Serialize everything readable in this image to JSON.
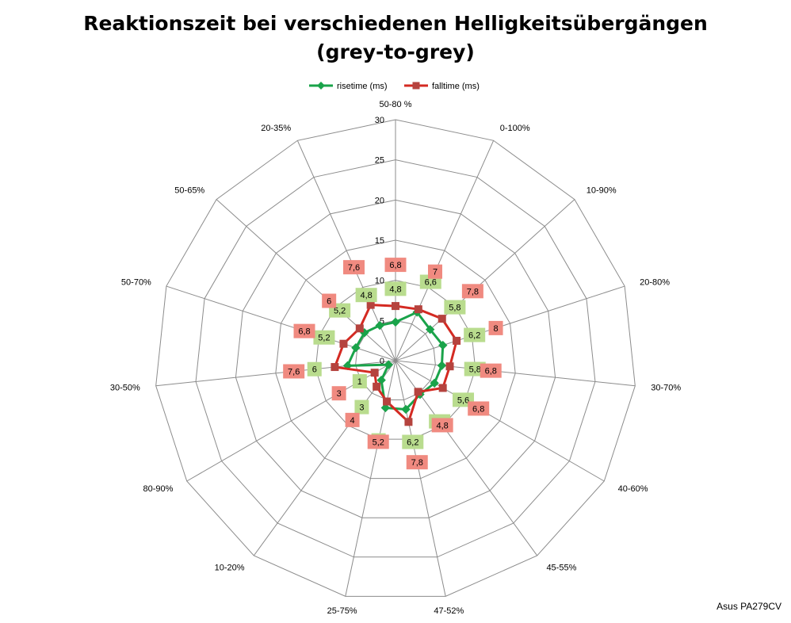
{
  "chart_data": {
    "type": "radar",
    "title_lines": [
      "Reaktionszeit bei verschiedenen Helligkeitsübergängen",
      "(grey-to-grey)"
    ],
    "categories": [
      "50-80 %",
      "0-100%",
      "10-90%",
      "20-80%",
      "30-70%",
      "40-60%",
      "45-55%",
      "47-52%",
      "25-75%",
      "10-20%",
      "80-90%",
      "30-50%",
      "50-70%",
      "50-65%",
      "20-35%"
    ],
    "rlim": [
      0,
      30
    ],
    "ticks": [
      0,
      5,
      10,
      15,
      20,
      25,
      30
    ],
    "grid": true,
    "legend_position": "top",
    "series": [
      {
        "name": "risetime (ms)",
        "color": "#1aa34a",
        "label_bg": "#b9dc8e",
        "marker": "diamond",
        "values": [
          4.8,
          6.6,
          5.8,
          6.2,
          5.8,
          5.6,
          5.2,
          6.2,
          6.0,
          3.0,
          1.0,
          6.0,
          5.2,
          5.2,
          4.8
        ]
      },
      {
        "name": "falltime (ms)",
        "color": "#d42a22",
        "label_bg": "#f08a80",
        "marker": "square",
        "values": [
          6.8,
          7.0,
          7.8,
          8.0,
          6.8,
          6.8,
          4.8,
          7.8,
          5.2,
          4.0,
          3.0,
          7.6,
          6.8,
          6.0,
          7.6
        ]
      }
    ]
  },
  "footer": "Asus PA279CV"
}
